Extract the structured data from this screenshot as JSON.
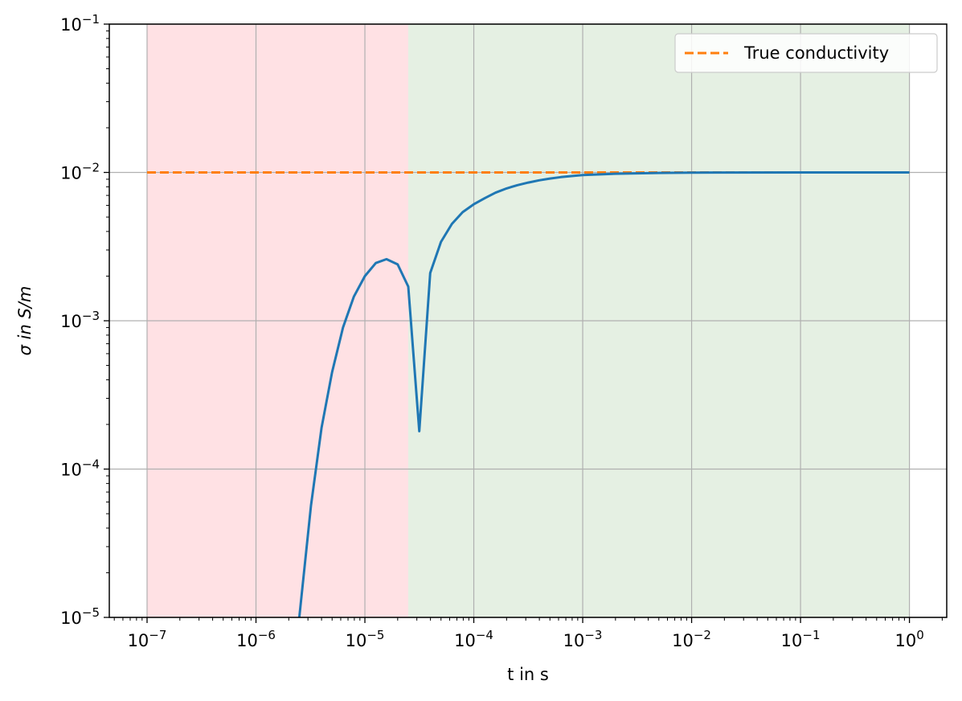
{
  "chart_data": {
    "type": "line",
    "title": "",
    "xlabel": "t in s",
    "ylabel": "σ in S/m",
    "xscale": "log",
    "yscale": "log",
    "xlim": [
      4.5e-08,
      2.2
    ],
    "ylim": [
      1e-05,
      0.1
    ],
    "grid": true,
    "legend_position": "top-right",
    "x_ticks": [
      {
        "value": 1e-07,
        "base": "10",
        "exp": "−7"
      },
      {
        "value": 1e-06,
        "base": "10",
        "exp": "−6"
      },
      {
        "value": 1e-05,
        "base": "10",
        "exp": "−5"
      },
      {
        "value": 0.0001,
        "base": "10",
        "exp": "−4"
      },
      {
        "value": 0.001,
        "base": "10",
        "exp": "−3"
      },
      {
        "value": 0.01,
        "base": "10",
        "exp": "−2"
      },
      {
        "value": 0.1,
        "base": "10",
        "exp": "−1"
      },
      {
        "value": 1,
        "base": "10",
        "exp": "0"
      }
    ],
    "y_ticks": [
      {
        "value": 1e-05,
        "base": "10",
        "exp": "−5"
      },
      {
        "value": 0.0001,
        "base": "10",
        "exp": "−4"
      },
      {
        "value": 0.001,
        "base": "10",
        "exp": "−3"
      },
      {
        "value": 0.01,
        "base": "10",
        "exp": "−2"
      },
      {
        "value": 0.1,
        "base": "10",
        "exp": "−1"
      }
    ],
    "regions": [
      {
        "x": [
          1e-07,
          2.5e-05
        ],
        "color": "#ffe1e4"
      },
      {
        "x": [
          2.5e-05,
          1
        ],
        "color": "#e5f0e3"
      }
    ],
    "series": [
      {
        "color": "#1f77b4",
        "style": "solid",
        "x": [
          2.5e-06,
          3.2e-06,
          4e-06,
          5e-06,
          6.3e-06,
          7.9e-06,
          1e-05,
          1.26e-05,
          1.58e-05,
          2e-05,
          2.5e-05,
          3.16e-05,
          3.98e-05,
          5e-05,
          6.3e-05,
          7.9e-05,
          0.0001,
          0.000126,
          0.000158,
          0.0002,
          0.00025,
          0.000316,
          0.000398,
          0.0005,
          0.00063,
          0.00079,
          0.001,
          0.002,
          0.005,
          0.01,
          0.1,
          1.0
        ],
        "y": [
          1e-05,
          5.7e-05,
          0.00019,
          0.00045,
          0.0009,
          0.00145,
          0.002,
          0.00245,
          0.0026,
          0.0024,
          0.0017,
          0.00018,
          0.0021,
          0.0034,
          0.0045,
          0.0054,
          0.0061,
          0.0067,
          0.0073,
          0.0078,
          0.0082,
          0.00855,
          0.00885,
          0.0091,
          0.0093,
          0.00945,
          0.0096,
          0.0098,
          0.00992,
          0.00997,
          0.01,
          0.01
        ]
      },
      {
        "name": "True conductivity",
        "color": "#ff7f0e",
        "style": "dashed",
        "x": [
          1e-07,
          1.0
        ],
        "y": [
          0.01,
          0.01
        ]
      }
    ]
  }
}
